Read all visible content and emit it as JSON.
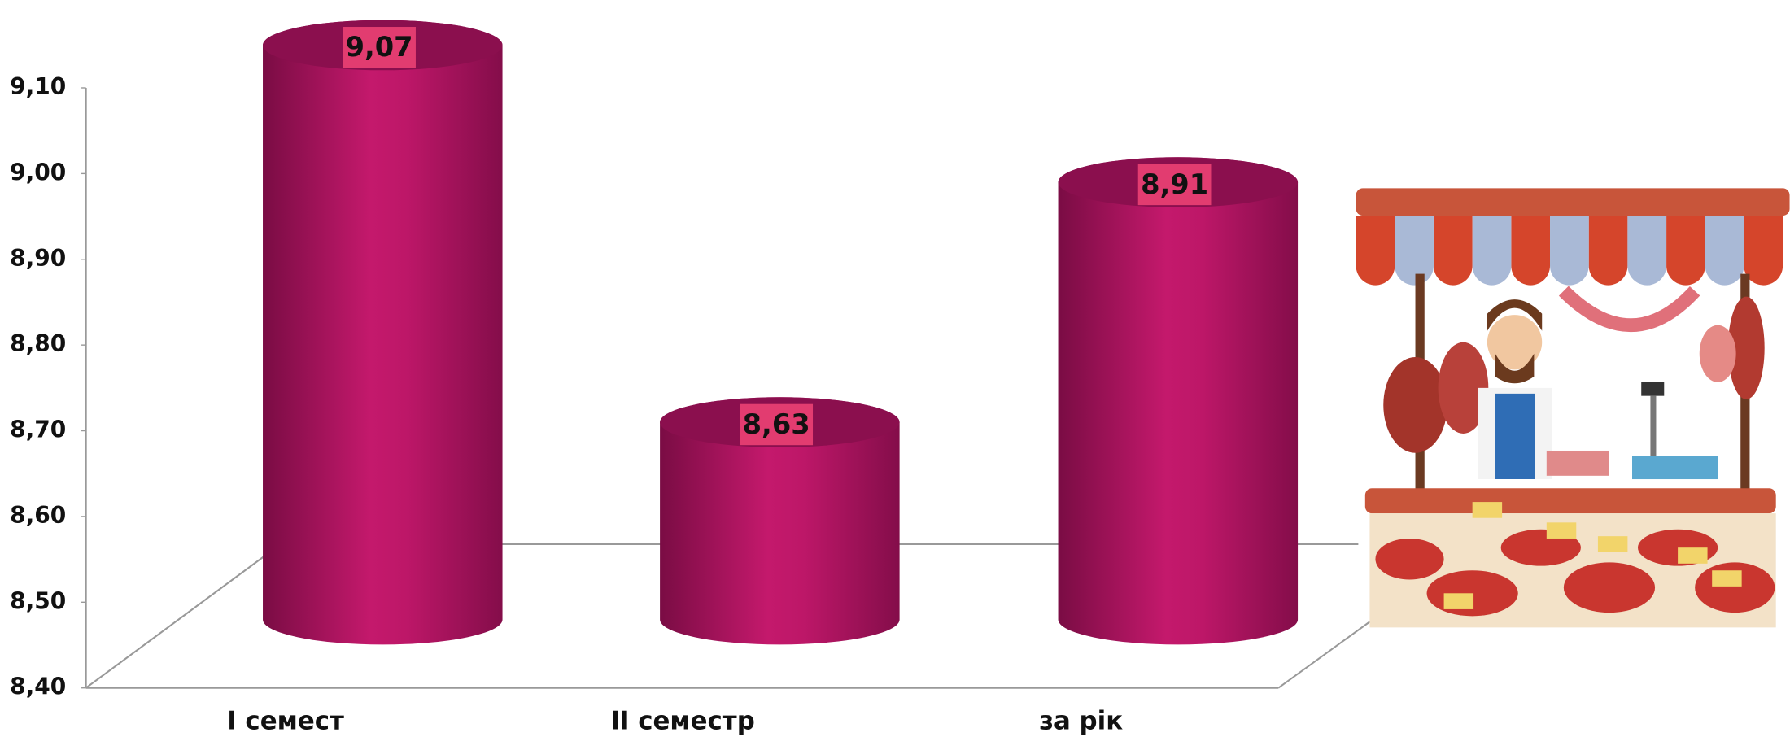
{
  "chart_data": {
    "type": "bar",
    "style": "3d-cylinder",
    "categories": [
      "І семест",
      "ІІ семестр",
      "за рік"
    ],
    "values": [
      9.07,
      8.63,
      8.91
    ],
    "value_labels": [
      "9,07",
      "8,63",
      "8,91"
    ],
    "color": "#be1668",
    "label_color": "#e23c70",
    "ylim": [
      8.4,
      9.1
    ],
    "yticks": [
      {
        "value": 8.4,
        "label": "8,40"
      },
      {
        "value": 8.5,
        "label": "8,50"
      },
      {
        "value": 8.6,
        "label": "8,60"
      },
      {
        "value": 8.7,
        "label": "8,70"
      },
      {
        "value": 8.8,
        "label": "8,80"
      },
      {
        "value": 8.9,
        "label": "8,90"
      },
      {
        "value": 9.0,
        "label": "9,00"
      },
      {
        "value": 9.1,
        "label": "9,10"
      }
    ],
    "grid": false
  }
}
